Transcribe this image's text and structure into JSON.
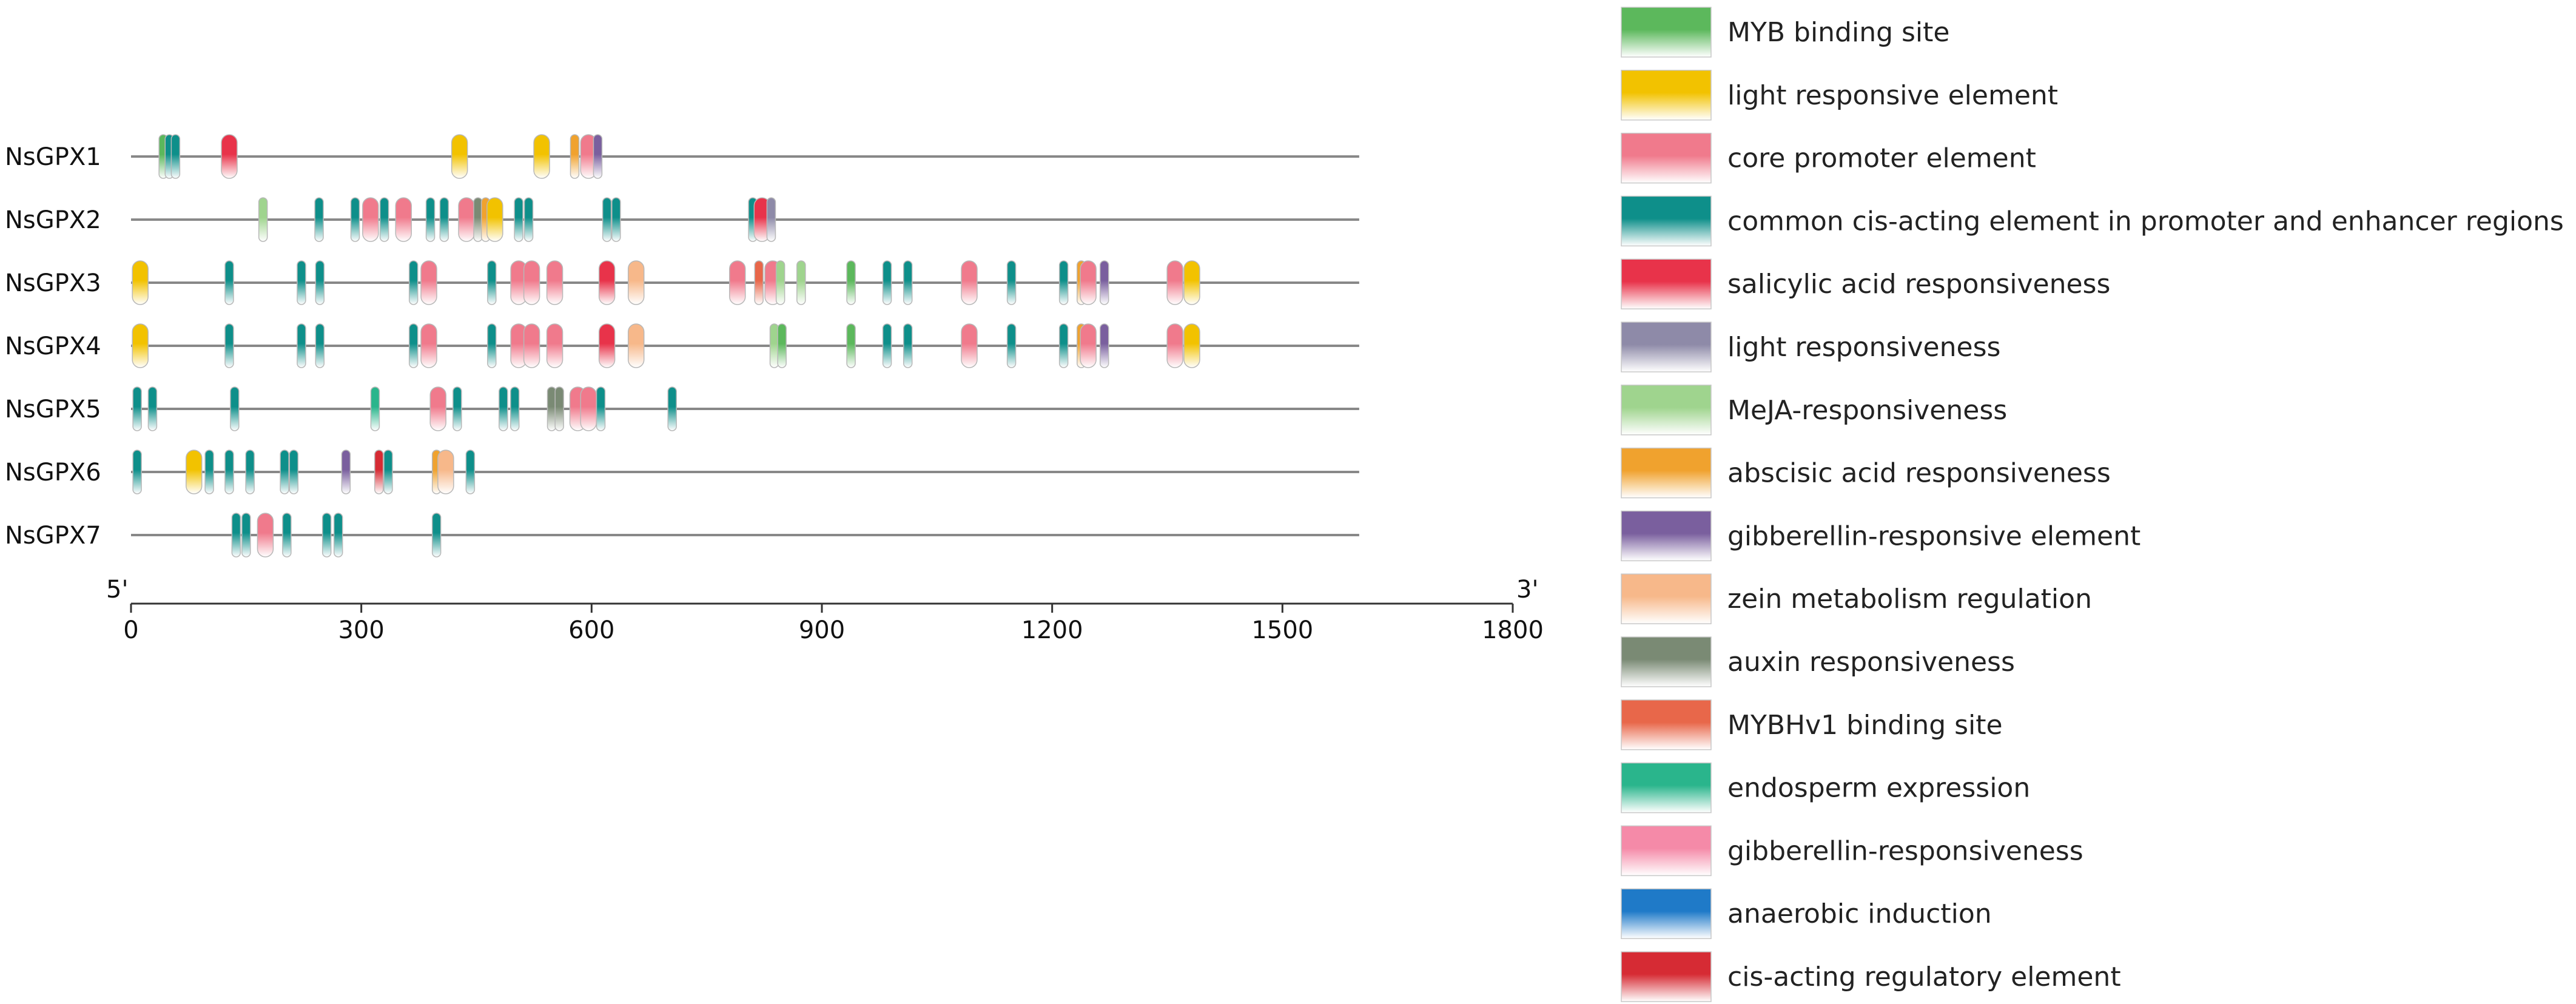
{
  "chart_data": {
    "type": "motif-map",
    "end_labels": {
      "left": "5'",
      "right": "3'"
    },
    "axis": {
      "min": 0,
      "max": 1800,
      "ticks": [
        0,
        300,
        600,
        900,
        1200,
        1500,
        1800
      ],
      "gene_length": 1600
    },
    "legend": [
      {
        "key": "myb",
        "label": "MYB binding site",
        "color": "#5cb85c"
      },
      {
        "key": "light_elem",
        "label": "light responsive element",
        "color": "#f2c200"
      },
      {
        "key": "core",
        "label": "core promoter element",
        "color": "#f07a8c"
      },
      {
        "key": "common",
        "label": "common cis-acting element in promoter and enhancer regions",
        "color": "#0e8f8a"
      },
      {
        "key": "sa",
        "label": "salicylic acid responsiveness",
        "color": "#e8334a"
      },
      {
        "key": "light_resp",
        "label": "light responsiveness",
        "color": "#8e8aa8"
      },
      {
        "key": "meja",
        "label": "MeJA-responsiveness",
        "color": "#9fd48e"
      },
      {
        "key": "aba",
        "label": "abscisic acid responsiveness",
        "color": "#f0a22e"
      },
      {
        "key": "ga_elem",
        "label": "gibberellin-responsive element",
        "color": "#7a5f9e"
      },
      {
        "key": "zein",
        "label": "zein metabolism regulation",
        "color": "#f7b88a"
      },
      {
        "key": "auxin",
        "label": "auxin responsiveness",
        "color": "#7a8a74"
      },
      {
        "key": "mybhv1",
        "label": "MYBHv1 binding site",
        "color": "#e8674a"
      },
      {
        "key": "endo",
        "label": "endosperm expression",
        "color": "#2ab58c"
      },
      {
        "key": "ga_resp",
        "label": "gibberellin-responsiveness",
        "color": "#f58aa8"
      },
      {
        "key": "anaer",
        "label": "anaerobic induction",
        "color": "#1f7ac8"
      },
      {
        "key": "cis",
        "label": "cis-acting regulatory element",
        "color": "#d62b34"
      }
    ],
    "genes": [
      {
        "name": "NsGPX1",
        "motifs": [
          {
            "pos": 42,
            "type": "myb"
          },
          {
            "pos": 50,
            "type": "common"
          },
          {
            "pos": 58,
            "type": "common"
          },
          {
            "pos": 128,
            "type": "sa"
          },
          {
            "pos": 428,
            "type": "light_elem"
          },
          {
            "pos": 535,
            "type": "light_elem"
          },
          {
            "pos": 578,
            "type": "aba"
          },
          {
            "pos": 596,
            "type": "core"
          },
          {
            "pos": 608,
            "type": "ga_elem"
          }
        ]
      },
      {
        "name": "NsGPX2",
        "motifs": [
          {
            "pos": 172,
            "type": "meja"
          },
          {
            "pos": 245,
            "type": "common"
          },
          {
            "pos": 292,
            "type": "common"
          },
          {
            "pos": 312,
            "type": "core"
          },
          {
            "pos": 330,
            "type": "common"
          },
          {
            "pos": 355,
            "type": "core"
          },
          {
            "pos": 390,
            "type": "common"
          },
          {
            "pos": 408,
            "type": "common"
          },
          {
            "pos": 437,
            "type": "core"
          },
          {
            "pos": 452,
            "type": "auxin"
          },
          {
            "pos": 462,
            "type": "aba"
          },
          {
            "pos": 474,
            "type": "light_elem"
          },
          {
            "pos": 505,
            "type": "common"
          },
          {
            "pos": 518,
            "type": "common"
          },
          {
            "pos": 620,
            "type": "common"
          },
          {
            "pos": 632,
            "type": "common"
          },
          {
            "pos": 810,
            "type": "common"
          },
          {
            "pos": 822,
            "type": "sa"
          },
          {
            "pos": 834,
            "type": "light_resp"
          }
        ]
      },
      {
        "name": "NsGPX3",
        "motifs": [
          {
            "pos": 12,
            "type": "light_elem"
          },
          {
            "pos": 128,
            "type": "common"
          },
          {
            "pos": 222,
            "type": "common"
          },
          {
            "pos": 246,
            "type": "common"
          },
          {
            "pos": 368,
            "type": "common"
          },
          {
            "pos": 388,
            "type": "core"
          },
          {
            "pos": 470,
            "type": "common"
          },
          {
            "pos": 505,
            "type": "core"
          },
          {
            "pos": 522,
            "type": "core"
          },
          {
            "pos": 552,
            "type": "core"
          },
          {
            "pos": 620,
            "type": "sa"
          },
          {
            "pos": 658,
            "type": "zein"
          },
          {
            "pos": 790,
            "type": "core"
          },
          {
            "pos": 818,
            "type": "mybhv1"
          },
          {
            "pos": 836,
            "type": "core"
          },
          {
            "pos": 846,
            "type": "meja"
          },
          {
            "pos": 873,
            "type": "meja"
          },
          {
            "pos": 938,
            "type": "myb"
          },
          {
            "pos": 985,
            "type": "common"
          },
          {
            "pos": 1012,
            "type": "common"
          },
          {
            "pos": 1092,
            "type": "core"
          },
          {
            "pos": 1147,
            "type": "common"
          },
          {
            "pos": 1215,
            "type": "common"
          },
          {
            "pos": 1238,
            "type": "aba"
          },
          {
            "pos": 1247,
            "type": "core"
          },
          {
            "pos": 1268,
            "type": "ga_elem"
          },
          {
            "pos": 1360,
            "type": "core"
          },
          {
            "pos": 1382,
            "type": "light_elem"
          }
        ]
      },
      {
        "name": "NsGPX4",
        "motifs": [
          {
            "pos": 12,
            "type": "light_elem"
          },
          {
            "pos": 128,
            "type": "common"
          },
          {
            "pos": 222,
            "type": "common"
          },
          {
            "pos": 246,
            "type": "common"
          },
          {
            "pos": 368,
            "type": "common"
          },
          {
            "pos": 388,
            "type": "core"
          },
          {
            "pos": 470,
            "type": "common"
          },
          {
            "pos": 505,
            "type": "core"
          },
          {
            "pos": 522,
            "type": "core"
          },
          {
            "pos": 552,
            "type": "core"
          },
          {
            "pos": 620,
            "type": "sa"
          },
          {
            "pos": 658,
            "type": "zein"
          },
          {
            "pos": 838,
            "type": "meja"
          },
          {
            "pos": 848,
            "type": "myb"
          },
          {
            "pos": 938,
            "type": "myb"
          },
          {
            "pos": 985,
            "type": "common"
          },
          {
            "pos": 1012,
            "type": "common"
          },
          {
            "pos": 1092,
            "type": "core"
          },
          {
            "pos": 1147,
            "type": "common"
          },
          {
            "pos": 1215,
            "type": "common"
          },
          {
            "pos": 1238,
            "type": "aba"
          },
          {
            "pos": 1247,
            "type": "core"
          },
          {
            "pos": 1268,
            "type": "ga_elem"
          },
          {
            "pos": 1360,
            "type": "core"
          },
          {
            "pos": 1382,
            "type": "light_elem"
          }
        ]
      },
      {
        "name": "NsGPX5",
        "motifs": [
          {
            "pos": 8,
            "type": "common"
          },
          {
            "pos": 28,
            "type": "common"
          },
          {
            "pos": 135,
            "type": "common"
          },
          {
            "pos": 318,
            "type": "endo"
          },
          {
            "pos": 400,
            "type": "core"
          },
          {
            "pos": 425,
            "type": "common"
          },
          {
            "pos": 485,
            "type": "common"
          },
          {
            "pos": 500,
            "type": "common"
          },
          {
            "pos": 548,
            "type": "auxin"
          },
          {
            "pos": 558,
            "type": "auxin"
          },
          {
            "pos": 582,
            "type": "core"
          },
          {
            "pos": 596,
            "type": "core"
          },
          {
            "pos": 612,
            "type": "common"
          },
          {
            "pos": 705,
            "type": "common"
          }
        ]
      },
      {
        "name": "NsGPX6",
        "motifs": [
          {
            "pos": 8,
            "type": "common"
          },
          {
            "pos": 82,
            "type": "light_elem"
          },
          {
            "pos": 102,
            "type": "common"
          },
          {
            "pos": 128,
            "type": "common"
          },
          {
            "pos": 155,
            "type": "common"
          },
          {
            "pos": 200,
            "type": "common"
          },
          {
            "pos": 212,
            "type": "common"
          },
          {
            "pos": 280,
            "type": "ga_elem"
          },
          {
            "pos": 323,
            "type": "cis"
          },
          {
            "pos": 335,
            "type": "common"
          },
          {
            "pos": 398,
            "type": "aba"
          },
          {
            "pos": 410,
            "type": "zein"
          },
          {
            "pos": 442,
            "type": "common"
          }
        ]
      },
      {
        "name": "NsGPX7",
        "motifs": [
          {
            "pos": 137,
            "type": "common"
          },
          {
            "pos": 150,
            "type": "common"
          },
          {
            "pos": 175,
            "type": "core"
          },
          {
            "pos": 203,
            "type": "common"
          },
          {
            "pos": 255,
            "type": "common"
          },
          {
            "pos": 270,
            "type": "common"
          },
          {
            "pos": 398,
            "type": "common"
          }
        ]
      }
    ]
  }
}
